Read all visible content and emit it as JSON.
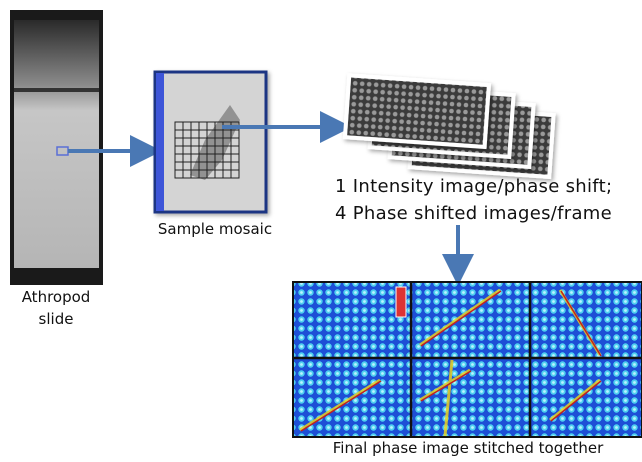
{
  "slide_label": {
    "lines": [
      "Athropod",
      "slide"
    ]
  },
  "mosaic_label": "Sample mosaic",
  "stack_caption": {
    "lines": [
      "1 Intensity image/phase shift;",
      "4 Phase shifted images/frame"
    ]
  },
  "final_caption": "Final phase image stitched together"
}
